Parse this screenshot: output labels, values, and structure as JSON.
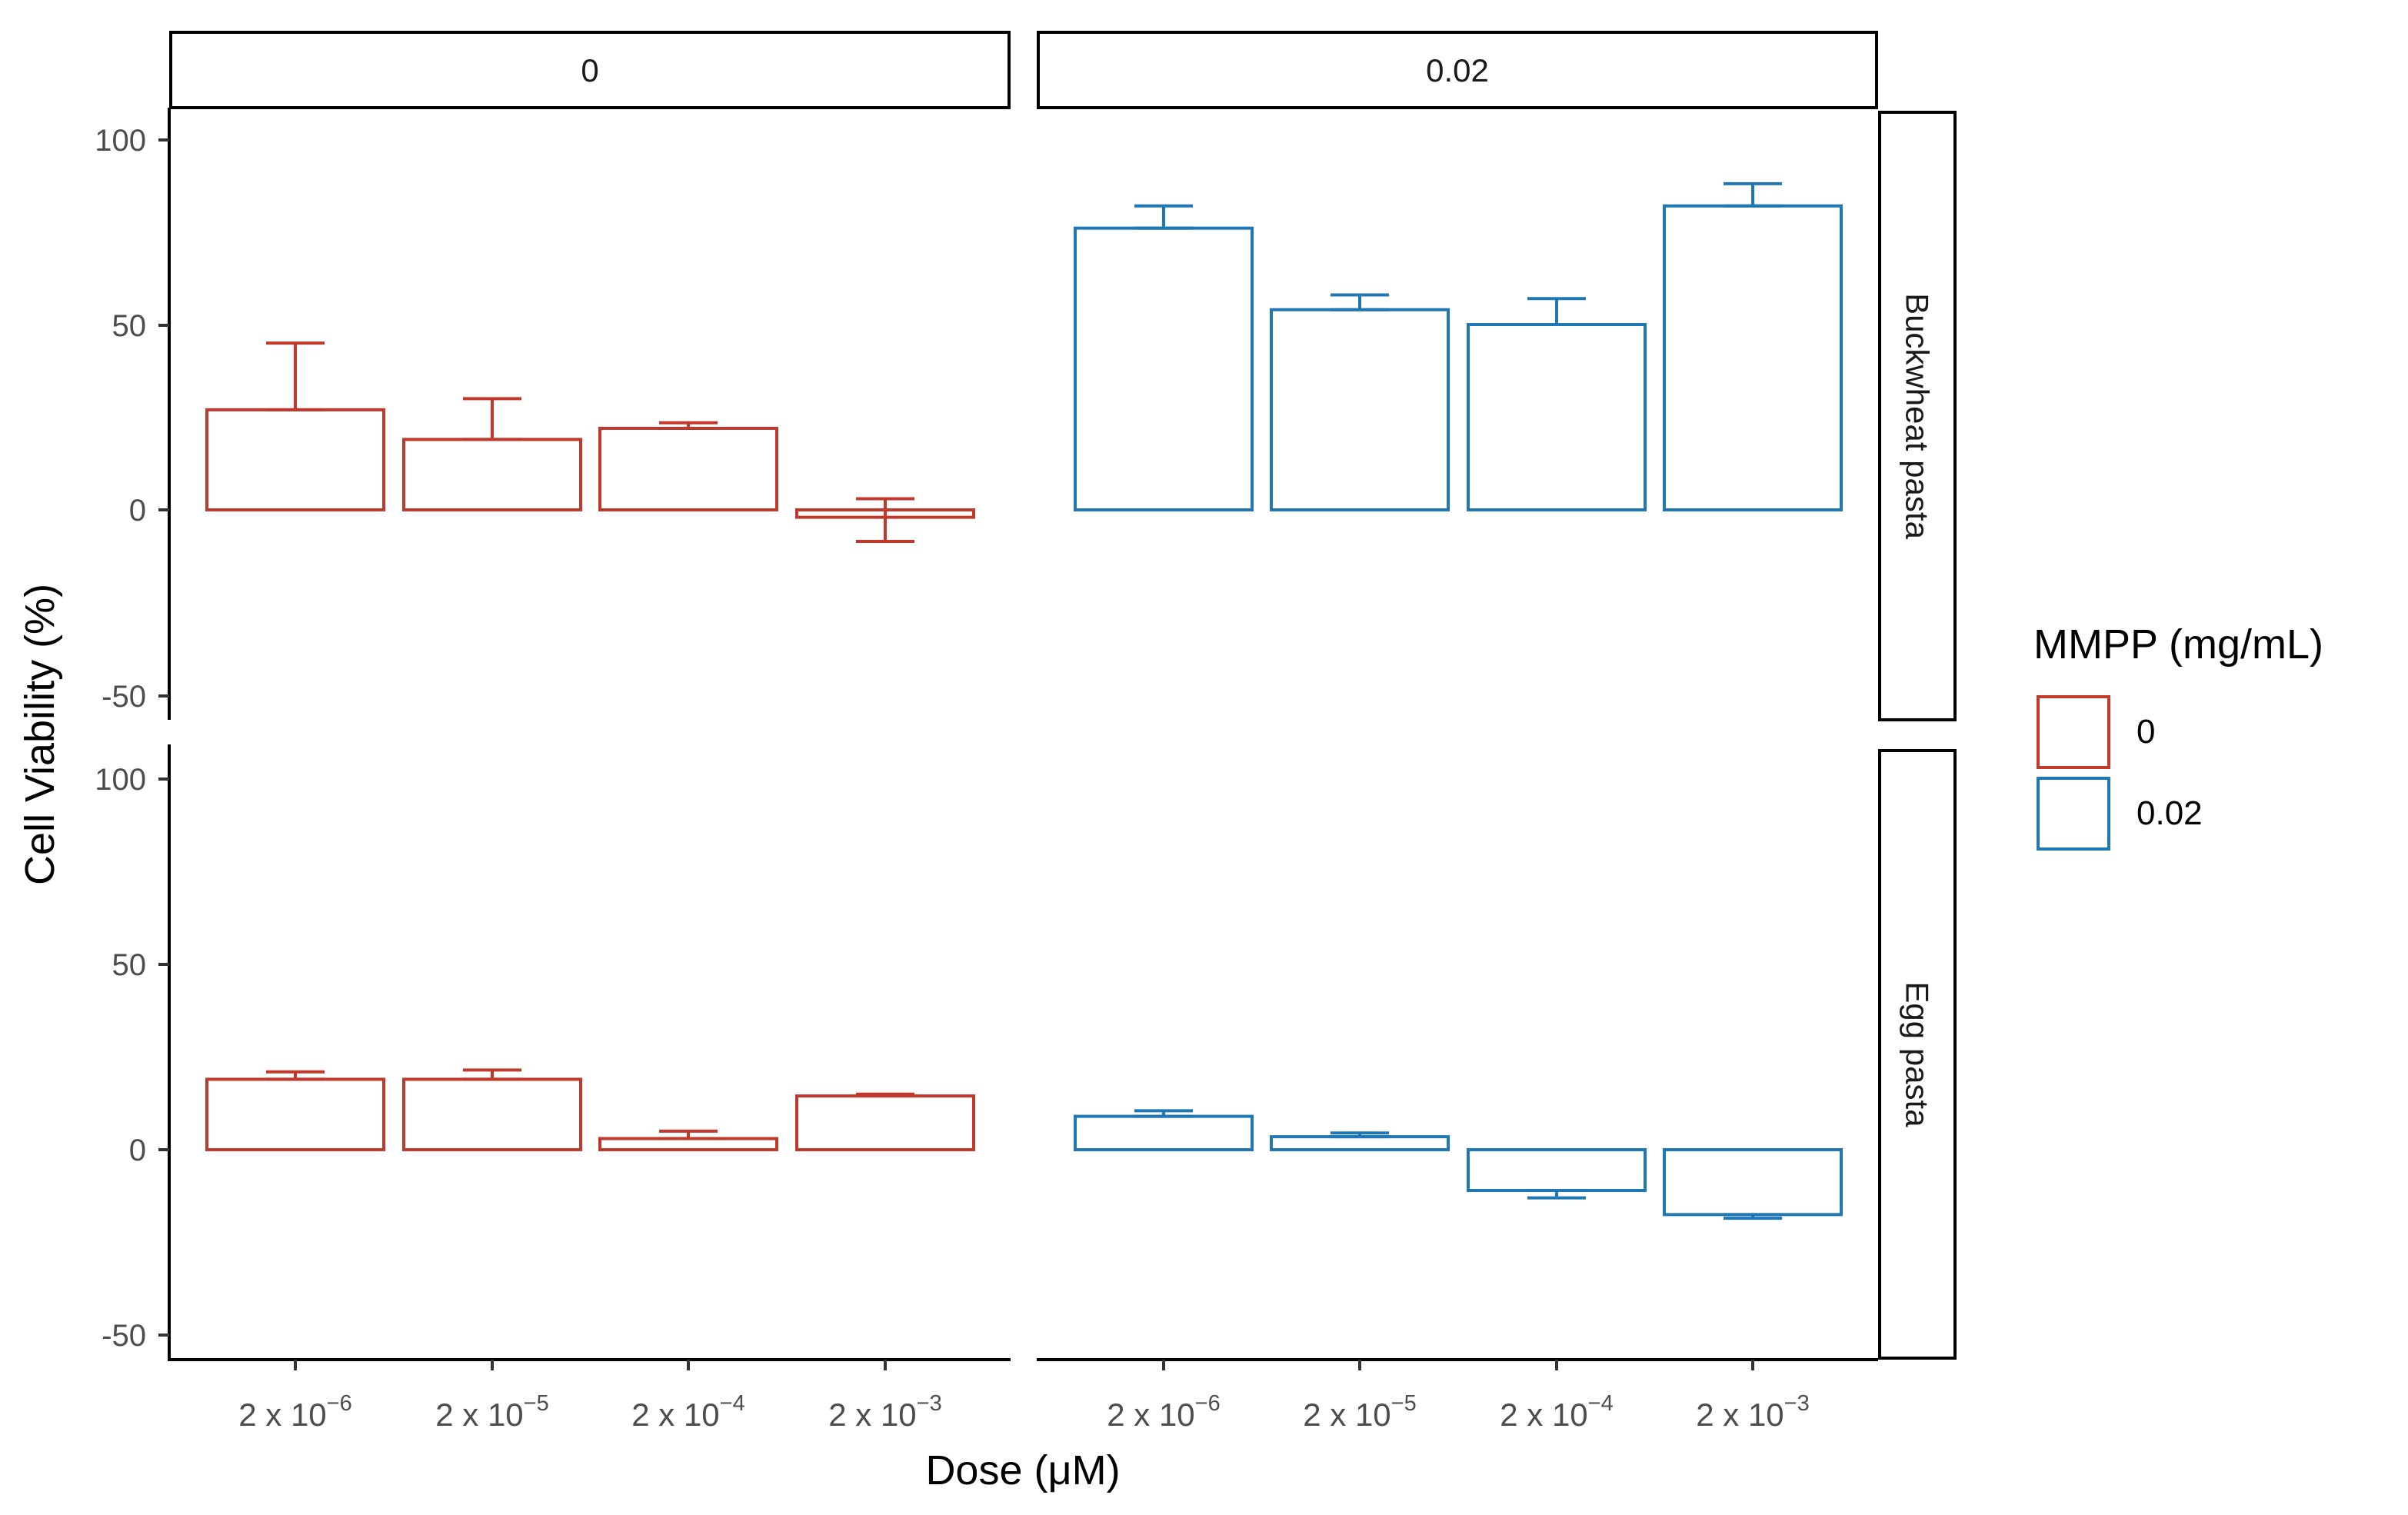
{
  "chart_data": {
    "type": "bar",
    "facet_columns": [
      "0",
      "0.02"
    ],
    "facet_rows": [
      "Buckwheat pasta",
      "Egg pasta"
    ],
    "categories": [
      "2 x 10^-6",
      "2 x 10^-5",
      "2 x 10^-4",
      "2 x 10^-3"
    ],
    "tick_labels": [
      {
        "base": "2 x 10",
        "exp": "−6"
      },
      {
        "base": "2 x 10",
        "exp": "−5"
      },
      {
        "base": "2 x 10",
        "exp": "−4"
      },
      {
        "base": "2 x 10",
        "exp": "−3"
      }
    ],
    "xlabel": "Dose (μM)",
    "ylabel": "Cell Viability (%)",
    "ylim": [
      -55,
      108
    ],
    "yticks": [
      -50,
      0,
      50,
      100
    ],
    "grid": false,
    "legend": {
      "title": "MMPP (mg/mL)",
      "position": "right",
      "entries": [
        {
          "label": "0",
          "color": "#C0392B"
        },
        {
          "label": "0.02",
          "color": "#1F77B4"
        }
      ]
    },
    "series": [
      {
        "name": "0",
        "facet_row": "Buckwheat pasta",
        "facet_col": "0",
        "color": "#C0392B",
        "values": [
          27,
          19,
          22,
          -2
        ],
        "error_upper": [
          45,
          30,
          23.5,
          3
        ],
        "error_lower": [
          27,
          19,
          22,
          -8.5
        ]
      },
      {
        "name": "0.02",
        "facet_row": "Buckwheat pasta",
        "facet_col": "0.02",
        "color": "#1F77B4",
        "values": [
          76,
          54,
          50,
          82
        ],
        "error_upper": [
          82,
          58,
          57,
          88
        ],
        "error_lower": [
          76,
          54,
          50,
          82
        ]
      },
      {
        "name": "0",
        "facet_row": "Egg pasta",
        "facet_col": "0",
        "color": "#C0392B",
        "values": [
          19,
          19,
          3,
          14.5
        ],
        "error_upper": [
          21,
          21.5,
          5,
          15
        ],
        "error_lower": [
          19,
          19,
          3,
          14.5
        ]
      },
      {
        "name": "0.02",
        "facet_row": "Egg pasta",
        "facet_col": "0.02",
        "color": "#1F77B4",
        "values": [
          9,
          3.5,
          -11,
          -17.5
        ],
        "error_upper": [
          10.5,
          4.5,
          -11,
          -17.5
        ],
        "error_lower": [
          9,
          3.5,
          -13,
          -18.5
        ]
      }
    ]
  }
}
